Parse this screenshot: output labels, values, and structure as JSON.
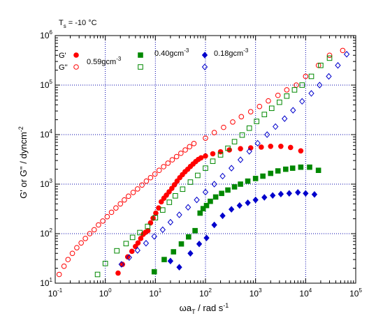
{
  "chart_data": {
    "type": "scatter",
    "title": "",
    "annotation": {
      "main": "T",
      "sub": "s",
      "rest": " = -10 °C"
    },
    "xlabel": {
      "main": "ωa",
      "sub": "T",
      "rest": " / rad s",
      "sup": "-1"
    },
    "ylabel": {
      "main": "G' or G'' / dyncm",
      "sup": "-2"
    },
    "x_scale": "log",
    "y_scale": "log",
    "xlim": [
      0.1,
      100000
    ],
    "ylim": [
      10,
      1000000
    ],
    "x_ticks": [
      {
        "base": "10",
        "exp": "-1",
        "value": 0.1
      },
      {
        "base": "10",
        "exp": "0",
        "value": 1
      },
      {
        "base": "10",
        "exp": "1",
        "value": 10
      },
      {
        "base": "10",
        "exp": "2",
        "value": 100
      },
      {
        "base": "10",
        "exp": "3",
        "value": 1000
      },
      {
        "base": "10",
        "exp": "4",
        "value": 10000
      },
      {
        "base": "10",
        "exp": "5",
        "value": 100000
      }
    ],
    "y_ticks": [
      {
        "base": "10",
        "exp": "1",
        "value": 10
      },
      {
        "base": "10",
        "exp": "2",
        "value": 100
      },
      {
        "base": "10",
        "exp": "3",
        "value": 1000
      },
      {
        "base": "10",
        "exp": "4",
        "value": 10000
      },
      {
        "base": "10",
        "exp": "5",
        "value": 100000
      },
      {
        "base": "10",
        "exp": "6",
        "value": 1000000
      }
    ],
    "grid": true,
    "legend": {
      "row_labels": [
        "G'",
        "G''"
      ],
      "groups": [
        {
          "label": "0.59gcm",
          "sup": "-3"
        },
        {
          "label": "0.40gcm",
          "sup": "-3"
        },
        {
          "label": "0.18gcm",
          "sup": "-3"
        }
      ]
    },
    "series": [
      {
        "modulus": "G'",
        "concentration": "0.59gcm-3",
        "marker": "circle",
        "filled": true,
        "color": "#ff0000",
        "points": [
          [
            1.8,
            16
          ],
          [
            2.2,
            24
          ],
          [
            2.8,
            34
          ],
          [
            3.4,
            44
          ],
          [
            4.0,
            55
          ],
          [
            4.5,
            65
          ],
          [
            5.1,
            80
          ],
          [
            5.7,
            97
          ],
          [
            6.3,
            106
          ],
          [
            7.1,
            115
          ],
          [
            8.0,
            165
          ],
          [
            9.0,
            205
          ],
          [
            10.2,
            260
          ],
          [
            11.6,
            330
          ],
          [
            13.1,
            440
          ],
          [
            14.8,
            520
          ],
          [
            16.6,
            600
          ],
          [
            18.8,
            700
          ],
          [
            21.3,
            820
          ],
          [
            24.0,
            970
          ],
          [
            27.1,
            1150
          ],
          [
            30.7,
            1350
          ],
          [
            34.6,
            1550
          ],
          [
            39.1,
            1780
          ],
          [
            44.2,
            2000
          ],
          [
            50.0,
            2270
          ],
          [
            56.5,
            2550
          ],
          [
            63.8,
            2850
          ],
          [
            72.0,
            3150
          ],
          [
            81.5,
            3400
          ],
          [
            100,
            3700
          ],
          [
            140,
            4100
          ],
          [
            200,
            4500
          ],
          [
            300,
            4900
          ],
          [
            500,
            5200
          ],
          [
            800,
            5400
          ],
          [
            1300,
            5600
          ],
          [
            2000,
            5800
          ],
          [
            3200,
            5800
          ],
          [
            5000,
            5500
          ],
          [
            8000,
            4700
          ]
        ]
      },
      {
        "modulus": "G''",
        "concentration": "0.59gcm-3",
        "marker": "circle",
        "filled": false,
        "color": "#ff0000",
        "points": [
          [
            0.12,
            15
          ],
          [
            0.15,
            22
          ],
          [
            0.18,
            30
          ],
          [
            0.22,
            40
          ],
          [
            0.27,
            52
          ],
          [
            0.33,
            65
          ],
          [
            0.4,
            80
          ],
          [
            0.49,
            100
          ],
          [
            0.6,
            120
          ],
          [
            0.73,
            150
          ],
          [
            0.89,
            180
          ],
          [
            1.09,
            220
          ],
          [
            1.33,
            270
          ],
          [
            1.63,
            330
          ],
          [
            2.0,
            400
          ],
          [
            2.4,
            480
          ],
          [
            2.9,
            570
          ],
          [
            3.6,
            680
          ],
          [
            4.4,
            800
          ],
          [
            5.4,
            960
          ],
          [
            6.6,
            1150
          ],
          [
            8.0,
            1350
          ],
          [
            9.8,
            1600
          ],
          [
            11.9,
            1900
          ],
          [
            14.6,
            2250
          ],
          [
            17.8,
            2650
          ],
          [
            21.7,
            3100
          ],
          [
            26.5,
            3600
          ],
          [
            32.3,
            4200
          ],
          [
            39.5,
            4900
          ],
          [
            48.2,
            5700
          ],
          [
            58.8,
            6600
          ],
          [
            100,
            8500
          ],
          [
            150,
            11000
          ],
          [
            230,
            14000
          ],
          [
            350,
            18000
          ],
          [
            520,
            23000
          ],
          [
            800,
            29000
          ],
          [
            1200,
            37000
          ],
          [
            1800,
            48000
          ],
          [
            2800,
            62000
          ],
          [
            4200,
            80000
          ],
          [
            6500,
            100000
          ],
          [
            10000,
            150000
          ],
          [
            18000,
            250000
          ],
          [
            30000,
            400000
          ],
          [
            55000,
            500000
          ]
        ]
      },
      {
        "modulus": "G'",
        "concentration": "0.40gcm-3",
        "marker": "square",
        "filled": true,
        "color": "#008800",
        "points": [
          [
            9.5,
            17
          ],
          [
            15,
            30
          ],
          [
            23,
            43
          ],
          [
            33,
            62
          ],
          [
            46,
            86
          ],
          [
            62,
            115
          ],
          [
            78,
            260
          ],
          [
            90,
            320
          ],
          [
            105,
            370
          ],
          [
            125,
            450
          ],
          [
            160,
            550
          ],
          [
            210,
            650
          ],
          [
            280,
            760
          ],
          [
            380,
            880
          ],
          [
            500,
            1000
          ],
          [
            700,
            1150
          ],
          [
            1000,
            1300
          ],
          [
            1400,
            1450
          ],
          [
            2000,
            1650
          ],
          [
            2800,
            1850
          ],
          [
            4000,
            2000
          ],
          [
            5500,
            2100
          ],
          [
            8000,
            2200
          ],
          [
            12000,
            2200
          ],
          [
            18000,
            1900
          ]
        ]
      },
      {
        "modulus": "G''",
        "concentration": "0.40gcm-3",
        "marker": "square",
        "filled": false,
        "color": "#008800",
        "points": [
          [
            0.7,
            15
          ],
          [
            1.0,
            25
          ],
          [
            1.7,
            45
          ],
          [
            2.6,
            63
          ],
          [
            3.5,
            84
          ],
          [
            4.9,
            105
          ],
          [
            7.0,
            140
          ],
          [
            10.0,
            210
          ],
          [
            14.0,
            300
          ],
          [
            19.0,
            430
          ],
          [
            25.0,
            580
          ],
          [
            35.0,
            790
          ],
          [
            50.0,
            1100
          ],
          [
            70.0,
            1500
          ],
          [
            100,
            2100
          ],
          [
            140,
            2900
          ],
          [
            200,
            3900
          ],
          [
            280,
            5300
          ],
          [
            380,
            7200
          ],
          [
            540,
            9800
          ],
          [
            750,
            13500
          ],
          [
            1050,
            18500
          ],
          [
            1500,
            25500
          ],
          [
            2100,
            34000
          ],
          [
            3000,
            45000
          ],
          [
            4200,
            60000
          ],
          [
            6000,
            80000
          ],
          [
            8500,
            100000
          ],
          [
            13000,
            150000
          ],
          [
            20000,
            250000
          ],
          [
            30000,
            350000
          ]
        ]
      },
      {
        "modulus": "G'",
        "concentration": "0.18gcm-3",
        "marker": "diamond",
        "filled": true,
        "color": "#0000cc",
        "points": [
          [
            20,
            28
          ],
          [
            30,
            21
          ],
          [
            50,
            40
          ],
          [
            75,
            62
          ],
          [
            105,
            82
          ],
          [
            150,
            150
          ],
          [
            220,
            230
          ],
          [
            330,
            310
          ],
          [
            480,
            370
          ],
          [
            700,
            420
          ],
          [
            1000,
            480
          ],
          [
            1500,
            540
          ],
          [
            2200,
            590
          ],
          [
            3200,
            630
          ],
          [
            4700,
            650
          ],
          [
            7000,
            680
          ],
          [
            10000,
            650
          ],
          [
            15000,
            620
          ]
        ]
      },
      {
        "modulus": "G''",
        "concentration": "0.18gcm-3",
        "marker": "diamond",
        "filled": false,
        "color": "#0000cc",
        "points": [
          [
            2.1,
            24
          ],
          [
            3.0,
            33
          ],
          [
            4.4,
            46
          ],
          [
            6.5,
            64
          ],
          [
            9.5,
            88
          ],
          [
            14,
            120
          ],
          [
            20,
            170
          ],
          [
            30,
            240
          ],
          [
            45,
            340
          ],
          [
            67,
            480
          ],
          [
            100,
            690
          ],
          [
            150,
            1000
          ],
          [
            220,
            1450
          ],
          [
            330,
            2100
          ],
          [
            500,
            3100
          ],
          [
            750,
            4600
          ],
          [
            1100,
            6700
          ],
          [
            1700,
            10000
          ],
          [
            2500,
            14500
          ],
          [
            3800,
            21000
          ],
          [
            5600,
            31000
          ],
          [
            8500,
            47000
          ],
          [
            13000,
            68000
          ],
          [
            19000,
            100000
          ],
          [
            29000,
            150000
          ],
          [
            44000,
            250000
          ],
          [
            66000,
            420000
          ]
        ]
      }
    ]
  }
}
